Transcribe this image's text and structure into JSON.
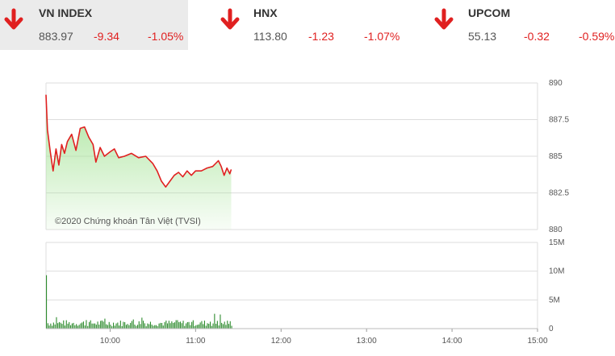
{
  "tabs": [
    {
      "name": "VN INDEX",
      "value": "883.97",
      "change": "-9.34",
      "percent": "-1.05%",
      "direction": "down",
      "active": true
    },
    {
      "name": "HNX",
      "value": "113.80",
      "change": "-1.23",
      "percent": "-1.07%",
      "direction": "down",
      "active": false
    },
    {
      "name": "UPCOM",
      "value": "55.13",
      "change": "-0.32",
      "percent": "-0.59%",
      "direction": "down",
      "active": false
    }
  ],
  "colors": {
    "down": "#e02020",
    "line": "#e02020",
    "area": "#b6eaa8",
    "volume": "#2e8b2e",
    "grid": "#dddddd"
  },
  "watermark": "©2020 Chứng khoán Tân Việt (TVSI)",
  "chart_data": {
    "type": "line",
    "x_ticks": [
      "10:00",
      "11:00",
      "12:00",
      "13:00",
      "14:00",
      "15:00"
    ],
    "x_range": [
      "09:15",
      "15:00"
    ],
    "price": {
      "y_ticks": [
        "890",
        "887.5",
        "885",
        "882.5",
        "880"
      ],
      "ylim": [
        880,
        890
      ],
      "series": [
        {
          "values": [
            [
              "09:15",
              889.2
            ],
            [
              "09:16",
              886.8
            ],
            [
              "09:18",
              885.3
            ],
            [
              "09:20",
              884.0
            ],
            [
              "09:22",
              885.5
            ],
            [
              "09:24",
              884.4
            ],
            [
              "09:26",
              885.8
            ],
            [
              "09:28",
              885.2
            ],
            [
              "09:30",
              886.0
            ],
            [
              "09:33",
              886.5
            ],
            [
              "09:36",
              885.4
            ],
            [
              "09:39",
              886.9
            ],
            [
              "09:42",
              887.0
            ],
            [
              "09:45",
              886.3
            ],
            [
              "09:48",
              885.8
            ],
            [
              "09:50",
              884.6
            ],
            [
              "09:53",
              885.6
            ],
            [
              "09:56",
              885.0
            ],
            [
              "10:00",
              885.3
            ],
            [
              "10:03",
              885.5
            ],
            [
              "10:06",
              884.9
            ],
            [
              "10:10",
              885.0
            ],
            [
              "10:15",
              885.2
            ],
            [
              "10:20",
              884.9
            ],
            [
              "10:25",
              885.0
            ],
            [
              "10:30",
              884.5
            ],
            [
              "10:33",
              884.0
            ],
            [
              "10:36",
              883.3
            ],
            [
              "10:39",
              882.9
            ],
            [
              "10:42",
              883.3
            ],
            [
              "10:45",
              883.7
            ],
            [
              "10:48",
              883.9
            ],
            [
              "10:51",
              883.6
            ],
            [
              "10:54",
              884.0
            ],
            [
              "10:57",
              883.7
            ],
            [
              "11:00",
              884.0
            ],
            [
              "11:04",
              884.0
            ],
            [
              "11:08",
              884.2
            ],
            [
              "11:12",
              884.3
            ],
            [
              "11:16",
              884.7
            ],
            [
              "11:18",
              884.3
            ],
            [
              "11:20",
              883.7
            ],
            [
              "11:22",
              884.2
            ],
            [
              "11:24",
              883.8
            ],
            [
              "11:25",
              884.1
            ]
          ]
        }
      ]
    },
    "volume": {
      "y_ticks": [
        "15M",
        "10M",
        "5M",
        "0"
      ],
      "ylim": [
        0,
        15
      ],
      "unit": "M",
      "spike": [
        "09:15",
        9.3
      ],
      "typical_range": [
        0.4,
        1.5
      ],
      "range": [
        "09:15",
        "11:25"
      ]
    }
  }
}
